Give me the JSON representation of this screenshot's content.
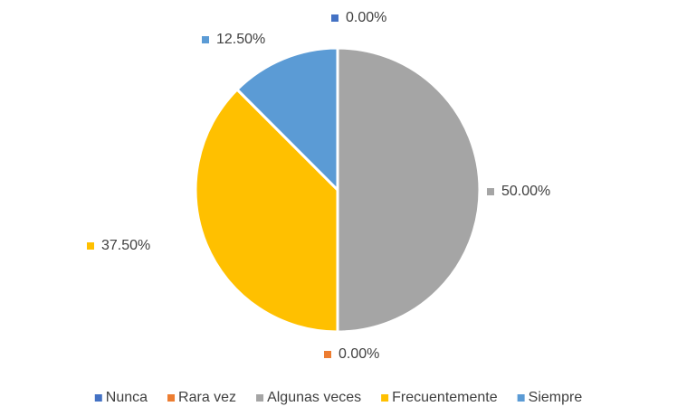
{
  "chart_data": {
    "type": "pie",
    "categories": [
      "Nunca",
      "Rara vez",
      "Algunas veces",
      "Frecuentemente",
      "Siempre"
    ],
    "values": [
      0,
      0,
      50,
      37.5,
      12.5
    ],
    "value_labels": [
      "0.00%",
      "0.00%",
      "50.00%",
      "37.50%",
      "12.50%"
    ],
    "colors": [
      "#4472c4",
      "#ed7d31",
      "#a5a5a5",
      "#ffc000",
      "#5b9bd5"
    ],
    "legend": "bottom"
  }
}
